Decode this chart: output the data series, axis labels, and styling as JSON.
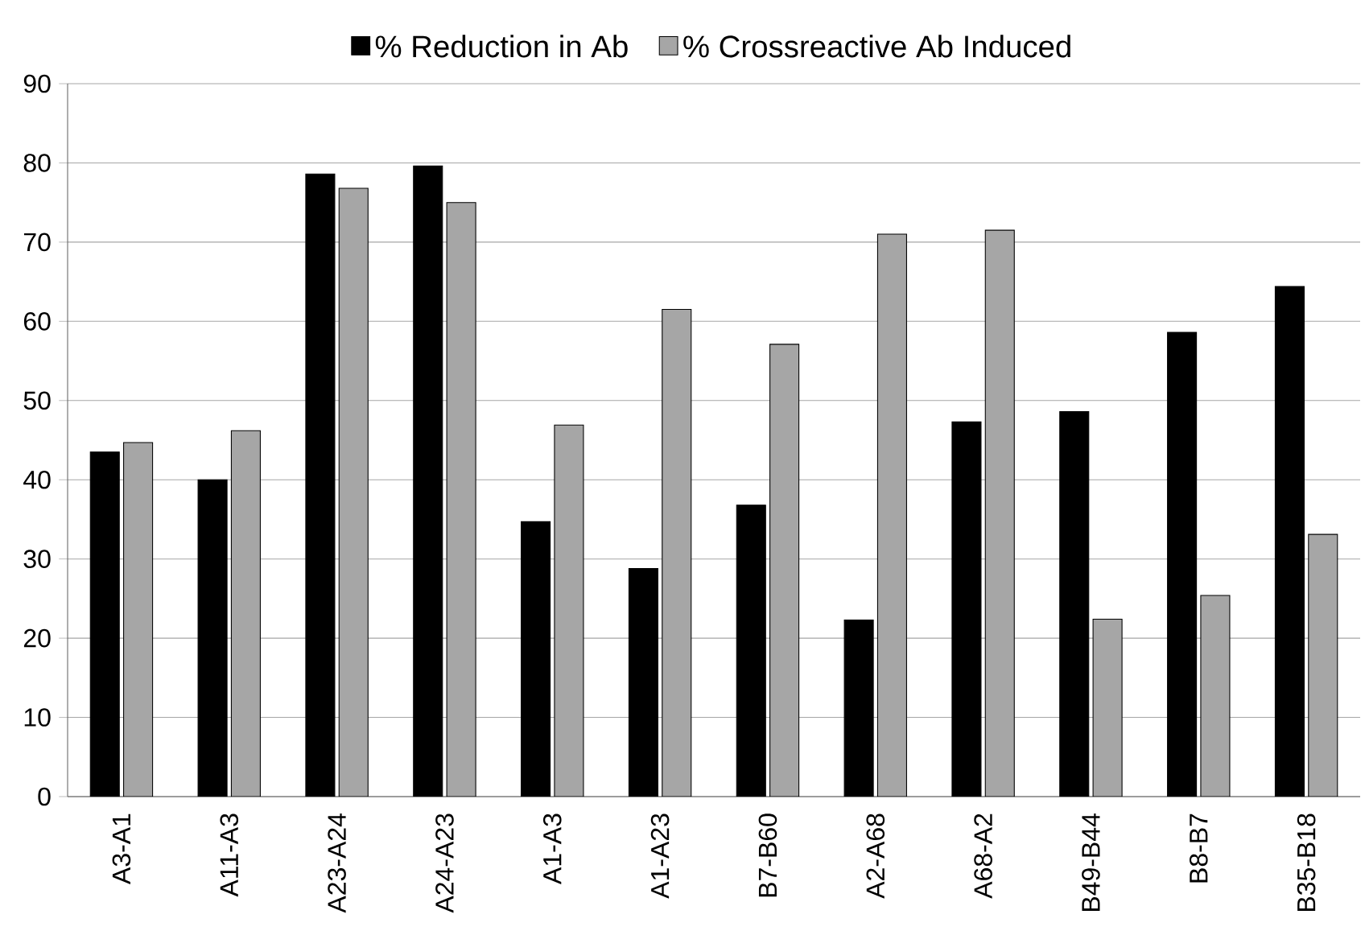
{
  "chart_data": {
    "type": "bar",
    "categories": [
      "A3-A1",
      "A11-A3",
      "A23-A24",
      "A24-A23",
      "A1-A3",
      "A1-A23",
      "B7-B60",
      "A2-A68",
      "A68-A2",
      "B49-B44",
      "B8-B7",
      "B35-B18"
    ],
    "series": [
      {
        "name": "% Reduction in Ab",
        "color": "#000000",
        "values": [
          43.5,
          40.0,
          78.6,
          79.6,
          34.7,
          28.8,
          36.8,
          22.3,
          47.3,
          48.6,
          58.6,
          64.4
        ]
      },
      {
        "name": "% Crossreactive Ab Induced",
        "color": "#a6a6a6",
        "values": [
          44.7,
          46.2,
          76.8,
          75.0,
          46.9,
          61.5,
          57.1,
          71.0,
          71.5,
          22.4,
          25.4,
          33.1
        ]
      }
    ],
    "ylim": [
      0,
      90
    ],
    "yticks": [
      0,
      10,
      20,
      30,
      40,
      50,
      60,
      70,
      80,
      90
    ],
    "grid": "y",
    "legend": "top"
  }
}
